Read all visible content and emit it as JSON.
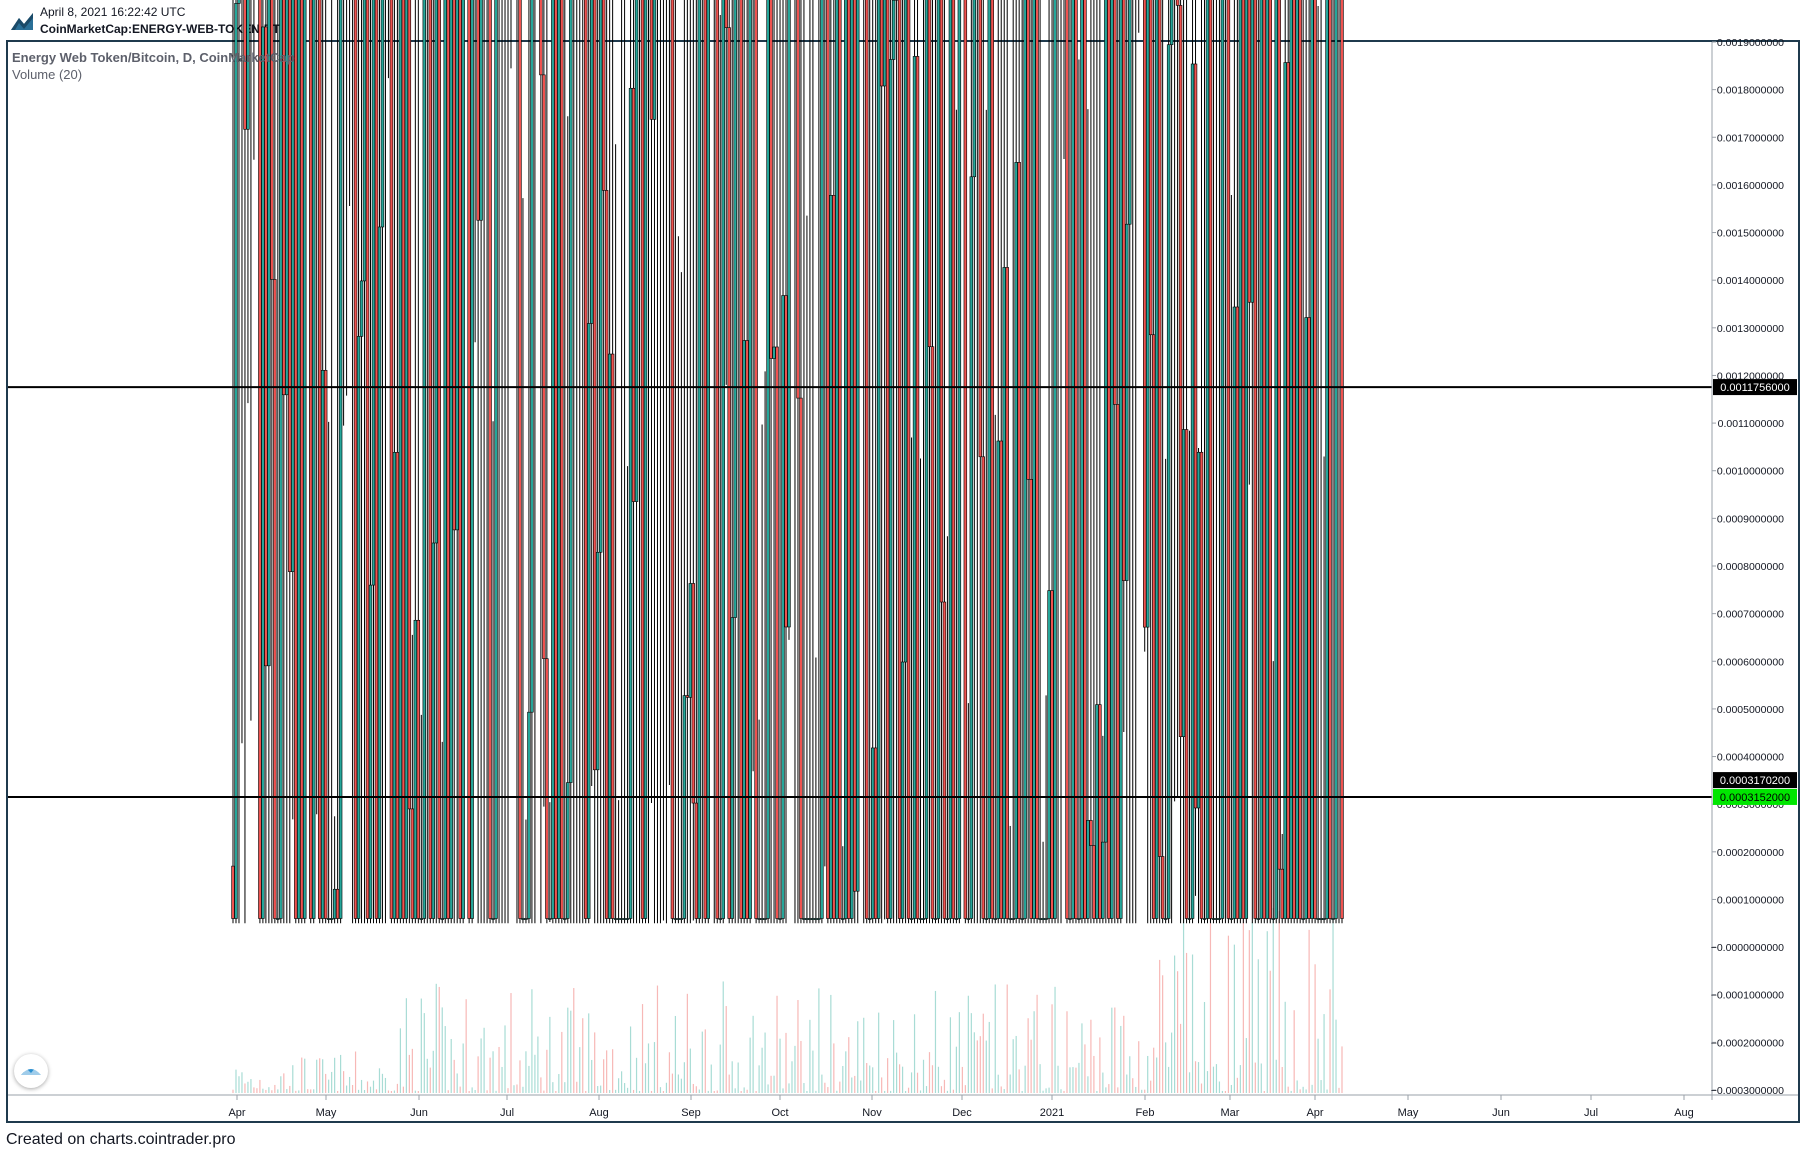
{
  "header": {
    "date": "April 8, 2021 16:22:42 UTC",
    "symbol": "CoinMarketCap:ENERGY-WEB-TOKEN:BTC, D"
  },
  "legend": {
    "title": "Energy Web Token/Bitcoin, D, CoinMarketCap",
    "volume": "Volume (20)"
  },
  "footer": "Created on charts.cointrader.pro",
  "colors": {
    "up": "#26a69a",
    "down": "#ef5350",
    "candle_border": "#000000",
    "frame": "#1f3a4d",
    "hline": "#000000",
    "tag_black": "#000000",
    "tag_green": "#00e600"
  },
  "chart_data": {
    "type": "candlestick",
    "title": "Energy Web Token/Bitcoin, D, CoinMarketCap",
    "interval": "D",
    "y_axis": {
      "position": "right",
      "min": -0.0003,
      "max": 0.0019,
      "ticks": [
        "0.0019000000",
        "0.0018000000",
        "0.0017000000",
        "0.0016000000",
        "0.0015000000",
        "0.0014000000",
        "0.0013000000",
        "0.0012000000",
        "0.0011000000",
        "0.0010000000",
        "0.0009000000",
        "0.0008000000",
        "0.0007000000",
        "0.0006000000",
        "0.0005000000",
        "0.0004000000",
        "0.0003000000",
        "0.0002000000",
        "0.0001000000",
        "−0.0000000000",
        "−0.0001000000",
        "−0.0002000000",
        "−0.0003000000"
      ]
    },
    "x_axis": {
      "labels": [
        "Apr",
        "May",
        "Jun",
        "Jul",
        "Aug",
        "Sep",
        "Oct",
        "Nov",
        "Dec",
        "2021",
        "Feb",
        "Mar",
        "Apr",
        "May",
        "Jun",
        "Jul",
        "Aug"
      ]
    },
    "grid": false,
    "horizontal_lines": [
      {
        "value": 0.0011756,
        "label": "0.0011756000",
        "tag": "black"
      },
      {
        "value": 0.0003152,
        "label": "0.0003152000",
        "tag": "green"
      }
    ],
    "price_tags": [
      {
        "value": 0.000317,
        "label": "0.0003170200",
        "tag": "black"
      }
    ],
    "price_path": {
      "start": "Apr 2020",
      "end": "Apr 8, 2021",
      "anchors": [
        [
          "Apr",
          0.00017
        ],
        [
          "Apr",
          9e-05
        ],
        [
          "May",
          0.00014
        ],
        [
          "May",
          0.00028
        ],
        [
          "May",
          0.00019
        ],
        [
          "Jun",
          0.0003
        ],
        [
          "Jun",
          0.00065
        ],
        [
          "Jun",
          0.00045
        ],
        [
          "Jul",
          0.0008
        ],
        [
          "Jul",
          0.00062
        ],
        [
          "Jul",
          0.0007
        ],
        [
          "Aug",
          0.00068
        ],
        [
          "Aug",
          0.0011
        ],
        [
          "Sep",
          0.00105
        ],
        [
          "Sep",
          0.00098
        ],
        [
          "Oct",
          0.0008
        ],
        [
          "Oct",
          0.00063
        ],
        [
          "Nov",
          0.00046
        ],
        [
          "Nov",
          0.0005
        ],
        [
          "Dec",
          0.00032
        ],
        [
          "Dec",
          0.0003
        ],
        [
          "2021",
          0.0002
        ],
        [
          "2021",
          0.00023
        ],
        [
          "Feb",
          0.00021
        ],
        [
          "Feb",
          0.00034
        ],
        [
          "Mar",
          0.00028
        ],
        [
          "Mar",
          0.00033
        ],
        [
          "Apr",
          0.00031
        ]
      ]
    },
    "volume": {
      "label": "Volume (20)",
      "note": "volume bars rendered at bottom, colored by candle direction"
    }
  }
}
